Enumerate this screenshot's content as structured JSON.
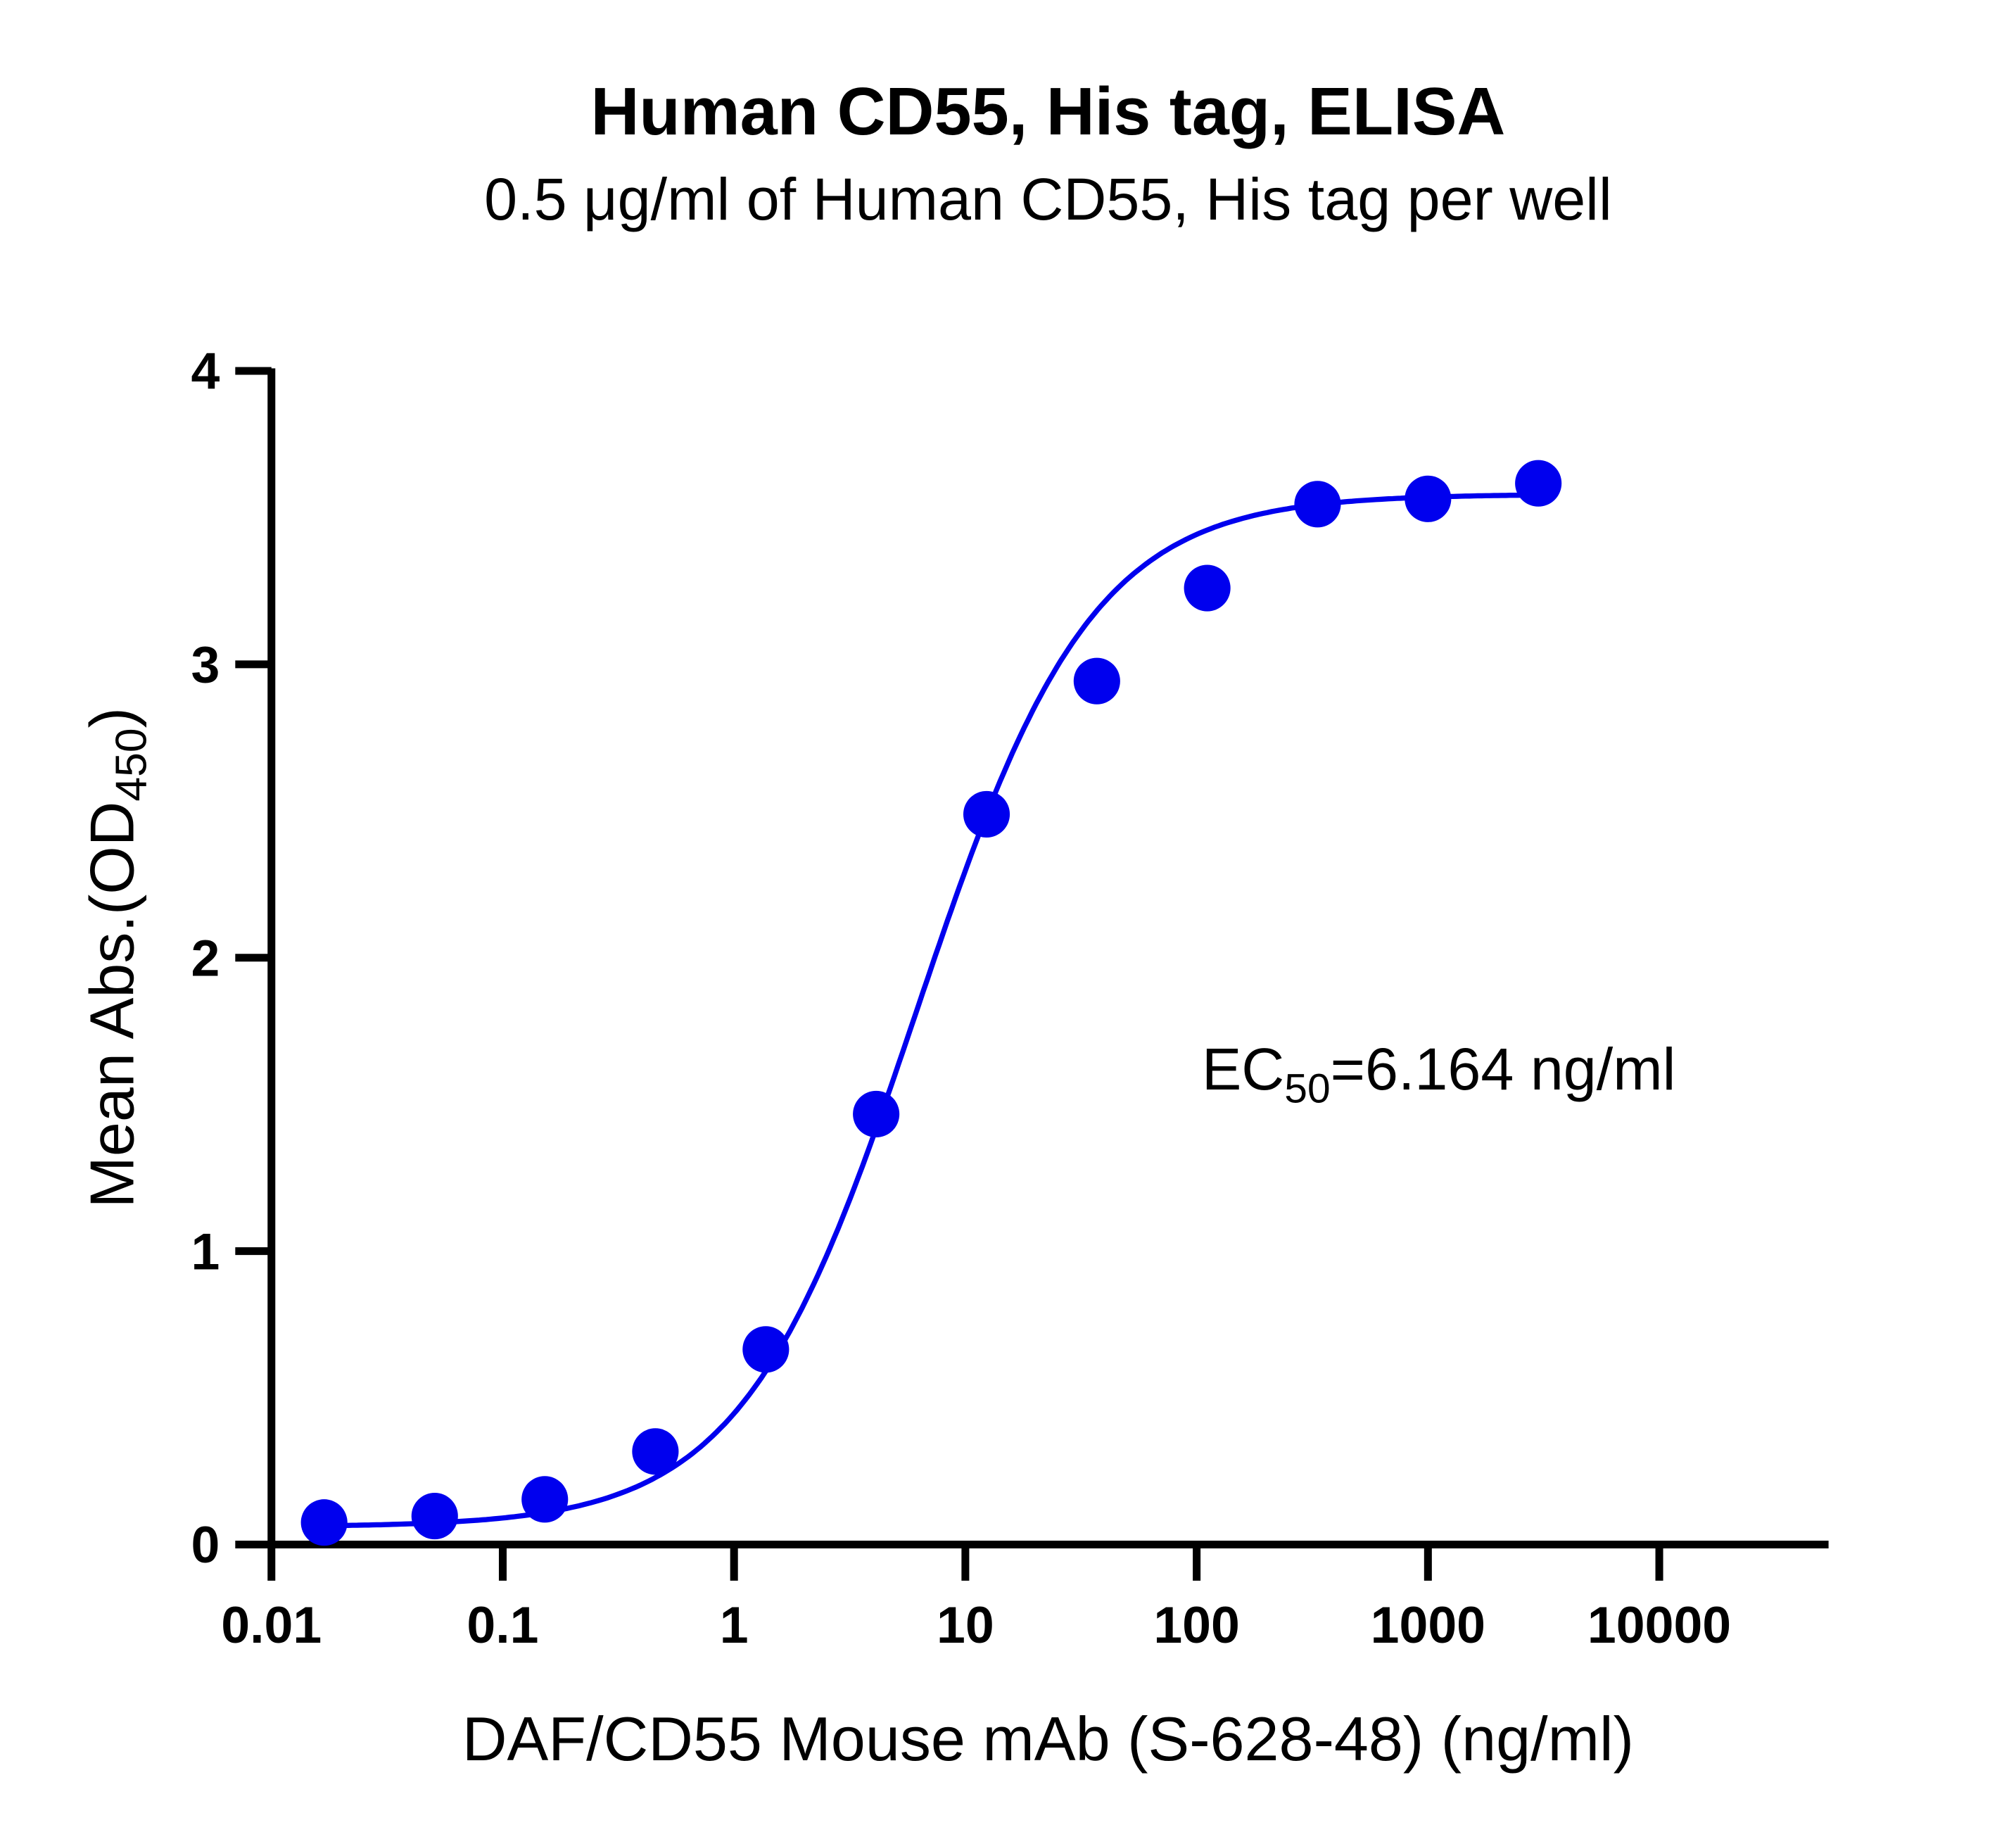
{
  "chart_data": {
    "type": "scatter",
    "title": "Human CD55, His tag, ELISA",
    "subtitle": "0.5 μg/ml of Human CD55, His tag per well",
    "xlabel": "DAF/CD55 Mouse mAb (S-628-48) (ng/ml)",
    "ylabel_main": "Mean Abs.(OD",
    "ylabel_sub": "450",
    "ylabel_close": ")",
    "xscale": "log",
    "xlim": [
      0.01,
      53000
    ],
    "ylim": [
      0,
      4
    ],
    "xticks": [
      0.01,
      0.1,
      1,
      10,
      100,
      1000,
      10000
    ],
    "xtick_labels": [
      "0.01",
      "0.1",
      "1",
      "10",
      "100",
      "1000",
      "10000"
    ],
    "yticks": [
      0,
      1,
      2,
      3,
      4
    ],
    "ytick_labels": [
      "0",
      "1",
      "2",
      "3",
      "4"
    ],
    "grid": false,
    "color": "#0000EE",
    "annotation": {
      "prefix": "EC",
      "sub": "50",
      "suffix": "=6.164 ng/ml"
    },
    "series": [
      {
        "x": [
          0.0169,
          0.0508,
          0.152,
          0.457,
          1.372,
          4.115,
          12.35,
          37.04,
          111.1,
          333.3,
          1000,
          3000
        ],
        "y": [
          0.075,
          0.097,
          0.154,
          0.317,
          0.665,
          1.467,
          2.489,
          2.943,
          3.26,
          3.546,
          3.564,
          3.617
        ]
      }
    ],
    "fit": {
      "model": "4PL",
      "bottom": 0.06,
      "top": 3.58,
      "ec50": 6.164,
      "hill": 1.15
    }
  }
}
